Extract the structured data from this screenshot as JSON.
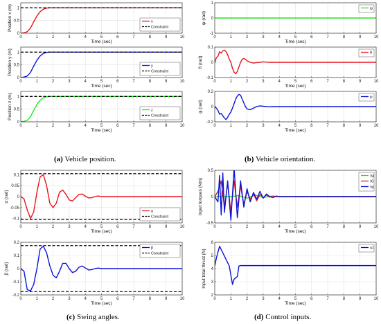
{
  "captions": [
    {
      "letter": "(a)",
      "text": " Vehicle position."
    },
    {
      "letter": "(b)",
      "text": " Vehicle orientation."
    },
    {
      "letter": "(c)",
      "text": " Swing angles."
    },
    {
      "letter": "(d)",
      "text": " Control inputs."
    }
  ],
  "chart_data": [
    {
      "type": "line",
      "panel": "a",
      "ylabel": "Position x (m)",
      "xlabel": "Time (sec)",
      "xlim": [
        0,
        10
      ],
      "ylim": [
        0,
        1.2
      ],
      "xticks": [
        0,
        1,
        2,
        3,
        4,
        5,
        6,
        7,
        8,
        9,
        10
      ],
      "yticks": [
        0,
        0.5,
        1
      ],
      "grid": true,
      "legend": "right",
      "series": [
        {
          "name": "x",
          "color": "#e8141c",
          "dash": "solid",
          "x": [
            0,
            0.2,
            0.4,
            0.6,
            0.8,
            1.0,
            1.2,
            1.4,
            1.6,
            1.8,
            2.0,
            3,
            4,
            5,
            6,
            7,
            8,
            9,
            10
          ],
          "y": [
            0,
            0.02,
            0.06,
            0.2,
            0.45,
            0.68,
            0.85,
            0.95,
            0.99,
            1.0,
            1.0,
            1.0,
            1.0,
            1.0,
            1.0,
            1.0,
            1.0,
            1.0,
            1.0
          ]
        },
        {
          "name": "Constraint",
          "color": "#000000",
          "dash": "dashed",
          "x": [
            0,
            10
          ],
          "y": [
            1.0,
            1.0
          ]
        }
      ]
    },
    {
      "type": "line",
      "panel": "a",
      "ylabel": "Position y (m)",
      "xlabel": "Time (sec)",
      "xlim": [
        0,
        10
      ],
      "ylim": [
        0,
        1.2
      ],
      "xticks": [
        0,
        1,
        2,
        3,
        4,
        5,
        6,
        7,
        8,
        9,
        10
      ],
      "yticks": [
        0,
        0.5,
        1
      ],
      "grid": true,
      "legend": "right",
      "series": [
        {
          "name": "y",
          "color": "#0a14d8",
          "dash": "solid",
          "x": [
            0,
            0.2,
            0.4,
            0.6,
            0.8,
            1.0,
            1.2,
            1.4,
            1.6,
            1.8,
            2.0,
            3,
            4,
            5,
            6,
            7,
            8,
            9,
            10
          ],
          "y": [
            0,
            0.02,
            0.06,
            0.2,
            0.45,
            0.68,
            0.85,
            0.95,
            0.99,
            1.0,
            1.0,
            1.0,
            1.0,
            1.0,
            1.0,
            1.0,
            1.0,
            1.0,
            1.0
          ]
        },
        {
          "name": "Constraint",
          "color": "#000000",
          "dash": "dashed",
          "x": [
            0,
            10
          ],
          "y": [
            1.0,
            1.0
          ]
        }
      ]
    },
    {
      "type": "line",
      "panel": "a",
      "ylabel": "Position z (m)",
      "xlabel": "Time (sec)",
      "xlim": [
        0,
        10
      ],
      "ylim": [
        0,
        1.2
      ],
      "xticks": [
        0,
        1,
        2,
        3,
        4,
        5,
        6,
        7,
        8,
        9,
        10
      ],
      "yticks": [
        0,
        0.5,
        1
      ],
      "grid": true,
      "legend": "right",
      "series": [
        {
          "name": "z",
          "color": "#20e81c",
          "dash": "solid",
          "x": [
            0,
            0.2,
            0.4,
            0.6,
            0.8,
            1.0,
            1.2,
            1.4,
            1.6,
            1.8,
            2.0,
            3,
            4,
            5,
            6,
            7,
            8,
            9,
            10
          ],
          "y": [
            0,
            0.02,
            0.06,
            0.2,
            0.45,
            0.68,
            0.85,
            0.95,
            0.99,
            1.0,
            1.0,
            1.0,
            1.0,
            1.0,
            1.0,
            1.0,
            1.0,
            1.0,
            1.0
          ]
        },
        {
          "name": "Constraint",
          "color": "#000000",
          "dash": "dashed",
          "x": [
            0,
            10
          ],
          "y": [
            1.0,
            1.0
          ]
        }
      ]
    },
    {
      "type": "line",
      "panel": "b",
      "ylabel": "ψ (rad)",
      "xlabel": "Time (sec)",
      "xlim": [
        0,
        10
      ],
      "ylim": [
        -1,
        1
      ],
      "xticks": [
        0,
        1,
        2,
        3,
        4,
        5,
        6,
        7,
        8,
        9,
        10
      ],
      "yticks": [
        -1,
        0,
        1
      ],
      "grid": true,
      "legend": "top-right",
      "series": [
        {
          "name": "ψ",
          "color": "#20e81c",
          "dash": "solid",
          "x": [
            0,
            10
          ],
          "y": [
            0,
            0
          ]
        }
      ]
    },
    {
      "type": "line",
      "panel": "b",
      "ylabel": "θ (rad)",
      "xlabel": "Time (sec)",
      "xlim": [
        0,
        10
      ],
      "ylim": [
        -0.1,
        0.1
      ],
      "xticks": [
        0,
        1,
        2,
        3,
        4,
        5,
        6,
        7,
        8,
        9,
        10
      ],
      "yticks": [
        -0.1,
        0,
        0.1
      ],
      "grid": true,
      "legend": "top-right",
      "series": [
        {
          "name": "θ",
          "color": "#e8141c",
          "dash": "solid",
          "x": [
            0,
            0.1,
            0.2,
            0.3,
            0.4,
            0.5,
            0.6,
            0.7,
            0.8,
            0.9,
            1.0,
            1.1,
            1.2,
            1.3,
            1.4,
            1.5,
            1.6,
            1.7,
            1.8,
            1.9,
            2.0,
            2.2,
            2.4,
            2.6,
            2.8,
            3.0,
            3.2,
            3.4,
            3.6,
            3.8,
            4.0,
            4.5,
            5,
            6,
            7,
            8,
            9,
            10
          ],
          "y": [
            0,
            0.03,
            0.04,
            0.07,
            0.06,
            0.075,
            0.08,
            0.07,
            0.05,
            0.02,
            0.0,
            -0.04,
            -0.065,
            -0.075,
            -0.06,
            -0.03,
            0.0,
            0.02,
            0.025,
            0.02,
            0.01,
            0.0,
            -0.005,
            -0.002,
            0.0,
            0.003,
            0.001,
            0.0,
            0.0,
            0.0,
            0.0,
            0.0,
            0.0,
            0.0,
            0.0,
            0.0,
            0.0,
            0.0
          ]
        }
      ]
    },
    {
      "type": "line",
      "panel": "b",
      "ylabel": "φ (rad)",
      "xlabel": "Time (sec)",
      "xlim": [
        0,
        10
      ],
      "ylim": [
        -0.2,
        0.2
      ],
      "xticks": [
        0,
        1,
        2,
        3,
        4,
        5,
        6,
        7,
        8,
        9,
        10
      ],
      "yticks": [
        -0.2,
        0,
        0.2
      ],
      "grid": true,
      "legend": "top-right",
      "series": [
        {
          "name": "φ",
          "color": "#0a14d8",
          "dash": "solid",
          "x": [
            0,
            0.1,
            0.2,
            0.3,
            0.4,
            0.5,
            0.6,
            0.7,
            0.8,
            0.9,
            1.0,
            1.1,
            1.2,
            1.3,
            1.4,
            1.5,
            1.6,
            1.7,
            1.8,
            1.9,
            2.0,
            2.2,
            2.4,
            2.6,
            2.8,
            3.0,
            3.2,
            3.4,
            3.6,
            3.8,
            4.0,
            4.5,
            5,
            6,
            7,
            8,
            9,
            10
          ],
          "y": [
            0,
            -0.02,
            -0.05,
            -0.1,
            -0.09,
            -0.12,
            -0.15,
            -0.17,
            -0.14,
            -0.1,
            -0.07,
            -0.02,
            0.04,
            0.1,
            0.14,
            0.16,
            0.15,
            0.1,
            0.05,
            0.0,
            -0.03,
            -0.04,
            -0.02,
            0.0,
            0.01,
            0.005,
            0.0,
            -0.003,
            0.0,
            0.0,
            0.0,
            0.0,
            0.0,
            0.0,
            0.0,
            0.0,
            0.0,
            0.0
          ]
        }
      ]
    },
    {
      "type": "line",
      "panel": "c",
      "ylabel": "α (rad)",
      "xlabel": "Time (sec)",
      "xlim": [
        0,
        10
      ],
      "ylim": [
        -0.12,
        0.12
      ],
      "xticks": [
        0,
        1,
        2,
        3,
        4,
        5,
        6,
        7,
        8,
        9,
        10
      ],
      "yticks": [
        -0.1,
        -0.05,
        0,
        0.05,
        0.1
      ],
      "grid": true,
      "legend": "right",
      "series": [
        {
          "name": "α",
          "color": "#e8141c",
          "dash": "solid",
          "x": [
            0,
            0.2,
            0.4,
            0.6,
            0.8,
            1.0,
            1.2,
            1.4,
            1.6,
            1.8,
            2.0,
            2.2,
            2.4,
            2.6,
            2.8,
            3.0,
            3.2,
            3.4,
            3.6,
            3.8,
            4.0,
            4.2,
            4.4,
            4.6,
            4.8,
            5,
            6,
            7,
            8,
            9,
            10
          ],
          "y": [
            0,
            -0.01,
            -0.06,
            -0.1,
            -0.07,
            0.02,
            0.09,
            0.1,
            0.05,
            -0.03,
            -0.05,
            -0.03,
            0.02,
            0.03,
            0.01,
            -0.015,
            -0.02,
            -0.005,
            0.01,
            0.012,
            0.002,
            -0.006,
            -0.005,
            0.0,
            0.003,
            0.0,
            0.0,
            0.0,
            0.0,
            0.0,
            0.0
          ]
        },
        {
          "name": "Constraint",
          "color": "#000000",
          "dash": "dashed",
          "x": [
            0,
            10
          ],
          "y": [
            0.105,
            0.105
          ]
        },
        {
          "name": "Constraint",
          "color": "#000000",
          "dash": "dashed",
          "x": [
            0,
            10
          ],
          "y": [
            -0.105,
            -0.105
          ]
        }
      ]
    },
    {
      "type": "line",
      "panel": "c",
      "ylabel": "β (rad)",
      "xlabel": "Time (sec)",
      "xlim": [
        0,
        10
      ],
      "ylim": [
        -0.2,
        0.2
      ],
      "xticks": [
        0,
        1,
        2,
        3,
        4,
        5,
        6,
        7,
        8,
        9,
        10
      ],
      "yticks": [
        -0.2,
        -0.1,
        0,
        0.1,
        0.2
      ],
      "grid": true,
      "legend": "top-right",
      "series": [
        {
          "name": "β",
          "color": "#0a14d8",
          "dash": "solid",
          "x": [
            0,
            0.2,
            0.4,
            0.6,
            0.8,
            1.0,
            1.2,
            1.4,
            1.6,
            1.8,
            2.0,
            2.2,
            2.4,
            2.6,
            2.8,
            3.0,
            3.2,
            3.4,
            3.6,
            3.8,
            4.0,
            4.2,
            4.4,
            4.6,
            4.8,
            5,
            6,
            7,
            8,
            9,
            10
          ],
          "y": [
            0,
            -0.02,
            -0.16,
            -0.17,
            -0.12,
            0.0,
            0.15,
            0.17,
            0.12,
            0.02,
            -0.05,
            -0.07,
            -0.02,
            0.04,
            0.04,
            0.0,
            -0.03,
            -0.02,
            0.01,
            0.02,
            0.005,
            -0.01,
            -0.008,
            0.0,
            0.004,
            0.0,
            0.0,
            0.0,
            0.0,
            0.0,
            0.0
          ]
        },
        {
          "name": "Constraint",
          "color": "#000000",
          "dash": "dashed",
          "x": [
            0,
            10
          ],
          "y": [
            0.175,
            0.175
          ]
        },
        {
          "name": "Constraint",
          "color": "#000000",
          "dash": "dashed",
          "x": [
            0,
            10
          ],
          "y": [
            -0.175,
            -0.175
          ]
        }
      ]
    },
    {
      "type": "line",
      "panel": "d",
      "ylabel": "Input torques (Nm)",
      "xlabel": "Time (sec)",
      "xlim": [
        0,
        10
      ],
      "ylim": [
        -0.5,
        0.5
      ],
      "xticks": [
        0,
        1,
        2,
        3,
        4,
        5,
        6,
        7,
        8,
        9,
        10
      ],
      "yticks": [
        -0.5,
        0,
        0.5
      ],
      "grid": true,
      "legend": "top-right",
      "series": [
        {
          "name": "τψ",
          "color": "#20e81c",
          "dash": "solid",
          "x": [
            0,
            1,
            1.5,
            2,
            2.5,
            3,
            3.5,
            4,
            10
          ],
          "y": [
            0,
            0,
            0.02,
            -0.03,
            0.03,
            -0.02,
            0.01,
            0,
            0
          ]
        },
        {
          "name": "τθ",
          "color": "#e8141c",
          "dash": "solid",
          "x": [
            0,
            0.2,
            0.4,
            0.6,
            0.8,
            1.0,
            1.2,
            1.4,
            1.6,
            1.8,
            2.0,
            2.2,
            2.4,
            2.6,
            2.8,
            3.0,
            3.2,
            3.4,
            3.6,
            3.8,
            4.0,
            4.5,
            5,
            10
          ],
          "y": [
            0,
            0.1,
            0.3,
            -0.2,
            0.25,
            -0.3,
            0.3,
            -0.2,
            0.2,
            -0.15,
            0.1,
            -0.05,
            0.05,
            -0.08,
            0.04,
            -0.02,
            0.03,
            -0.01,
            0.01,
            0.0,
            0.0,
            0.0,
            0.0,
            0.0
          ]
        },
        {
          "name": "τφ",
          "color": "#0a14d8",
          "dash": "solid",
          "x": [
            0,
            0.2,
            0.3,
            0.4,
            0.5,
            0.6,
            0.8,
            1.0,
            1.2,
            1.4,
            1.6,
            1.8,
            2.0,
            2.2,
            2.4,
            2.6,
            2.8,
            3.0,
            3.2,
            3.4,
            3.6,
            3.8,
            4.0,
            4.5,
            5,
            10
          ],
          "y": [
            0,
            -0.1,
            0.4,
            -0.35,
            0.45,
            -0.3,
            0.3,
            -0.45,
            0.55,
            -0.4,
            0.3,
            -0.2,
            0.15,
            -0.1,
            0.08,
            -0.05,
            0.1,
            -0.03,
            0.05,
            0.0,
            -0.02,
            0.01,
            0.0,
            0.0,
            0.0,
            0.0
          ]
        }
      ]
    },
    {
      "type": "line",
      "panel": "d",
      "ylabel": "Input total thrust (N)",
      "xlabel": "Time (sec)",
      "xlim": [
        0,
        10
      ],
      "ylim": [
        2,
        6
      ],
      "xticks": [
        0,
        1,
        2,
        3,
        4,
        5,
        6,
        7,
        8,
        9,
        10
      ],
      "yticks": [
        2,
        3,
        4,
        5,
        6
      ],
      "grid": true,
      "legend": "top-right",
      "series": [
        {
          "name": "u1",
          "color": "#0a14d8",
          "dash": "solid",
          "x": [
            0,
            0.1,
            0.3,
            0.5,
            0.7,
            0.9,
            1.0,
            1.1,
            1.2,
            1.4,
            1.5,
            1.6,
            10
          ],
          "y": [
            4.2,
            4.8,
            5.7,
            5.2,
            4.7,
            4.2,
            3.5,
            2.8,
            3.2,
            3.4,
            4.2,
            4.23,
            4.23
          ]
        }
      ]
    }
  ]
}
